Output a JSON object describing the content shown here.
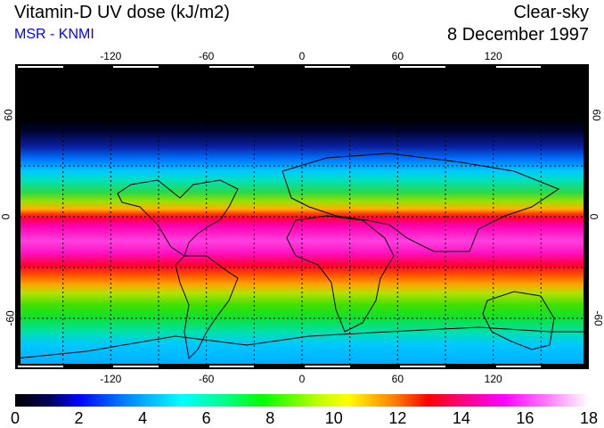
{
  "header": {
    "title": "Vitamin-D UV dose (kJ/m2)",
    "credit": "MSR - KNMI",
    "condition": "Clear-sky",
    "date": "8 December 1997"
  },
  "map": {
    "projection": "equirectangular",
    "lon_range": [
      -180,
      180
    ],
    "lat_range": [
      -90,
      90
    ],
    "lon_ticks": [
      "-120",
      "-60",
      "0",
      "60",
      "120"
    ],
    "lat_ticks": [
      "60",
      "0",
      "-60"
    ],
    "gridline_spacing_deg": 30
  },
  "colorbar": {
    "min": 0,
    "max": 18,
    "labels": [
      "0",
      "2",
      "4",
      "6",
      "8",
      "10",
      "12",
      "14",
      "16",
      "18"
    ],
    "colors": [
      "#000000",
      "#0000ff",
      "#00ffff",
      "#00ff00",
      "#ffff00",
      "#ff0000",
      "#ff00ff",
      "#ffffff"
    ]
  }
}
